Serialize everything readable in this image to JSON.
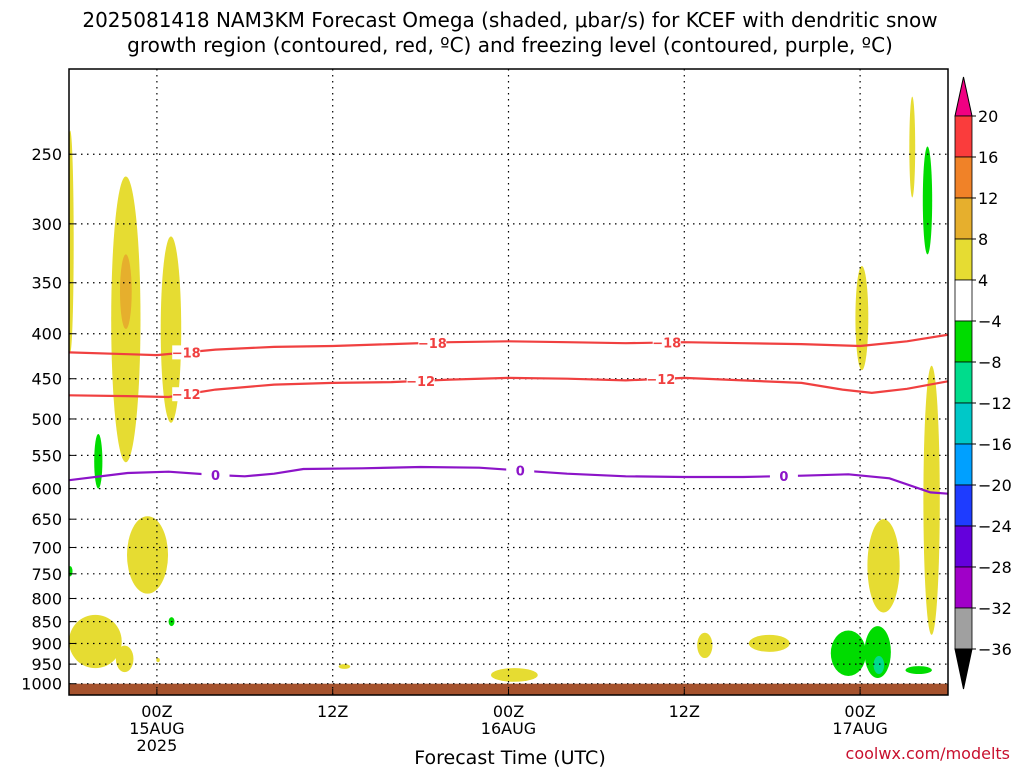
{
  "chart_data": {
    "type": "heatmap",
    "title_line1": "2025081418 NAM3KM Forecast Omega (shaded, μbar/s) for KCEF with dendritic snow",
    "title_line2": "growth region (contoured, red, ºC) and freezing level (contoured, purple, ºC)",
    "xlabel": "Forecast Time (UTC)",
    "credit": "coolwx.com/modelts",
    "x_range_hours": [
      -15,
      135
    ],
    "y_range_hpa": [
      200,
      1030
    ],
    "y_log": true,
    "x_ticks": [
      {
        "hour": 0,
        "line1": "00Z",
        "line2": "15AUG",
        "line3": "2025"
      },
      {
        "hour": 30,
        "line1": "12Z",
        "line2": "",
        "line3": ""
      },
      {
        "hour": 60,
        "line1": "00Z",
        "line2": "16AUG",
        "line3": ""
      },
      {
        "hour": 90,
        "line1": "12Z",
        "line2": "",
        "line3": ""
      },
      {
        "hour": 120,
        "line1": "00Z",
        "line2": "17AUG",
        "line3": ""
      }
    ],
    "y_ticks": [
      250,
      300,
      350,
      400,
      450,
      500,
      550,
      600,
      650,
      700,
      750,
      800,
      850,
      900,
      950,
      1000
    ],
    "colorbar": {
      "levels": [
        -36,
        -32,
        -28,
        -24,
        -20,
        -16,
        -12,
        -8,
        -4,
        4,
        8,
        12,
        16,
        20
      ],
      "labels": [
        "20",
        "16",
        "12",
        "8",
        "4",
        "−4",
        "−8",
        "−12",
        "−16",
        "−20",
        "−24",
        "−28",
        "−32",
        "−36"
      ],
      "colors": {
        "below": "#000000",
        "bins_low_to_high": [
          "#a0a0a0",
          "#a000c8",
          "#6400dc",
          "#1e3cff",
          "#00a0ff",
          "#00c8c8",
          "#00dc8c",
          "#00dc00",
          "#ffffff",
          "#e6dc32",
          "#e6af2d",
          "#f08228",
          "#fa3c3c"
        ],
        "above": "#f00082"
      }
    },
    "contours": [
      {
        "name": "-18",
        "label": "−18",
        "color": "#f04040",
        "points": [
          [
            -15,
            420
          ],
          [
            -5,
            422
          ],
          [
            0,
            423
          ],
          [
            10,
            417
          ],
          [
            20,
            414
          ],
          [
            30,
            413
          ],
          [
            40,
            411
          ],
          [
            50,
            409
          ],
          [
            60,
            408
          ],
          [
            70,
            409
          ],
          [
            80,
            410
          ],
          [
            90,
            409
          ],
          [
            100,
            410
          ],
          [
            110,
            411
          ],
          [
            120,
            413
          ],
          [
            128,
            408
          ],
          [
            135,
            401
          ]
        ],
        "label_hours": [
          5,
          47,
          87
        ]
      },
      {
        "name": "-12",
        "label": "−12",
        "color": "#f04040",
        "points": [
          [
            -15,
            470
          ],
          [
            -5,
            471
          ],
          [
            2,
            472
          ],
          [
            10,
            463
          ],
          [
            20,
            457
          ],
          [
            30,
            455
          ],
          [
            40,
            454
          ],
          [
            50,
            451
          ],
          [
            60,
            449
          ],
          [
            70,
            450
          ],
          [
            80,
            452
          ],
          [
            90,
            449
          ],
          [
            100,
            452
          ],
          [
            110,
            455
          ],
          [
            117,
            463
          ],
          [
            122,
            467
          ],
          [
            128,
            462
          ],
          [
            135,
            453
          ]
        ],
        "label_hours": [
          5,
          45,
          86
        ]
      },
      {
        "name": "0",
        "label": "0",
        "color": "#8c14c8",
        "points": [
          [
            -15,
            587
          ],
          [
            -5,
            576
          ],
          [
            2,
            574
          ],
          [
            10,
            579
          ],
          [
            15,
            581
          ],
          [
            20,
            577
          ],
          [
            25,
            570
          ],
          [
            35,
            569
          ],
          [
            45,
            567
          ],
          [
            55,
            568
          ],
          [
            60,
            571
          ],
          [
            70,
            577
          ],
          [
            80,
            581
          ],
          [
            90,
            582
          ],
          [
            100,
            582
          ],
          [
            110,
            580
          ],
          [
            118,
            578
          ],
          [
            125,
            584
          ],
          [
            132,
            606
          ],
          [
            135,
            608
          ]
        ],
        "label_hours": [
          10,
          62,
          107
        ]
      }
    ],
    "shaded_regions": [
      {
        "name": "edge-column",
        "value": 5,
        "hour": -14.8,
        "p_top": 235,
        "p_bot": 420,
        "w": 1.2
      },
      {
        "name": "tall-column-a",
        "value": 5,
        "hour": -5.3,
        "p_top": 265,
        "p_bot": 560,
        "w": 5
      },
      {
        "name": "tall-column-a-core",
        "value": 9,
        "hour": -5.3,
        "p_top": 325,
        "p_bot": 395,
        "w": 2
      },
      {
        "name": "column-b",
        "value": 5,
        "hour": 2.4,
        "p_top": 310,
        "p_bot": 505,
        "w": 3.5
      },
      {
        "name": "green-streak-a",
        "value": -6,
        "hour": -10,
        "p_top": 520,
        "p_bot": 600,
        "w": 1.4
      },
      {
        "name": "green-dot-left",
        "value": -6,
        "hour": -14.8,
        "p_top": 735,
        "p_bot": 755,
        "w": 0.8
      },
      {
        "name": "mid-blob",
        "value": 5,
        "hour": -1.6,
        "p_top": 645,
        "p_bot": 790,
        "w": 7
      },
      {
        "name": "low-blob-a",
        "value": 5,
        "hour": -10.5,
        "p_top": 835,
        "p_bot": 960,
        "w": 9
      },
      {
        "name": "low-blob-b",
        "value": 5,
        "hour": -5.5,
        "p_top": 905,
        "p_bot": 970,
        "w": 3
      },
      {
        "name": "green-dot-b",
        "value": -6,
        "hour": 2.5,
        "p_top": 840,
        "p_bot": 860,
        "w": 1
      },
      {
        "name": "tiny-yellow-a",
        "value": 5,
        "hour": 0.2,
        "p_top": 935,
        "p_bot": 945,
        "w": 0.6
      },
      {
        "name": "tiny-yellow-b",
        "value": 5,
        "hour": 32,
        "p_top": 950,
        "p_bot": 962,
        "w": 2
      },
      {
        "name": "low-blob-c",
        "value": 5,
        "hour": 61,
        "p_top": 960,
        "p_bot": 995,
        "w": 8
      },
      {
        "name": "low-blob-d",
        "value": 5,
        "hour": 93.5,
        "p_top": 875,
        "p_bot": 935,
        "w": 2.6
      },
      {
        "name": "low-blob-e",
        "value": 5,
        "hour": 104.5,
        "p_top": 880,
        "p_bot": 920,
        "w": 7
      },
      {
        "name": "column-c",
        "value": 5,
        "hour": 120.3,
        "p_top": 335,
        "p_bot": 440,
        "w": 2.2
      },
      {
        "name": "upper-streak",
        "value": 5,
        "hour": 128.9,
        "p_top": 215,
        "p_bot": 280,
        "w": 1
      },
      {
        "name": "green-column-upper",
        "value": -6,
        "hour": 131.5,
        "p_top": 245,
        "p_bot": 325,
        "w": 1.6
      },
      {
        "name": "right-column",
        "value": 5,
        "hour": 132.2,
        "p_top": 435,
        "p_bot": 880,
        "w": 2.8
      },
      {
        "name": "mid-right-blob",
        "value": 5,
        "hour": 124,
        "p_top": 650,
        "p_bot": 830,
        "w": 5.5
      },
      {
        "name": "green-low-a",
        "value": -6,
        "hour": 118,
        "p_top": 870,
        "p_bot": 980,
        "w": 6
      },
      {
        "name": "green-low-b",
        "value": -6,
        "hour": 123,
        "p_top": 860,
        "p_bot": 985,
        "w": 4.5
      },
      {
        "name": "teal-core",
        "value": -10,
        "hour": 123.2,
        "p_top": 930,
        "p_bot": 975,
        "w": 1.8
      },
      {
        "name": "green-low-c",
        "value": -6,
        "hour": 130,
        "p_top": 955,
        "p_bot": 975,
        "w": 4.5
      }
    ],
    "ground": {
      "color": "#a5522d",
      "p_top": 1000
    }
  }
}
